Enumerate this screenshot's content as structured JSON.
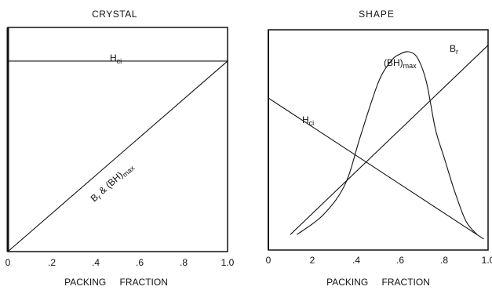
{
  "chart_data": [
    {
      "type": "line",
      "title": "CRYSTAL",
      "xlabel": "PACKING FRACTION",
      "ylabel": "",
      "xlim": [
        0,
        1.0
      ],
      "ylim": [
        0,
        1.0
      ],
      "x_ticks": [
        "0",
        ".2",
        ".4",
        ".6",
        ".8",
        "1.0"
      ],
      "grid": false,
      "series": [
        {
          "name": "Hci",
          "x": [
            0,
            1.0
          ],
          "y": [
            0.85,
            0.85
          ]
        },
        {
          "name": "Br & (BH)max",
          "x": [
            0,
            1.0
          ],
          "y": [
            0,
            0.85
          ]
        }
      ],
      "annotations": [
        {
          "text": "H",
          "sub": "ci"
        },
        {
          "text": "B",
          "sub": "r",
          "tail": " & (BH)",
          "sub2": "max"
        }
      ]
    },
    {
      "type": "line",
      "title": "SHAPE",
      "xlabel": "PACKING FRACTION",
      "ylabel": "",
      "xlim": [
        0,
        1.0
      ],
      "ylim": [
        0,
        1.0
      ],
      "x_ticks": [
        "0",
        "2",
        ".4",
        ".6",
        ".8",
        "1.0"
      ],
      "grid": false,
      "series": [
        {
          "name": "Br",
          "x": [
            0.1,
            1.0
          ],
          "y": [
            0.07,
            0.93
          ]
        },
        {
          "name": "Hci",
          "x": [
            0,
            0.98
          ],
          "y": [
            0.69,
            0.05
          ]
        },
        {
          "name": "(BH)max",
          "x": [
            0.13,
            0.25,
            0.35,
            0.42,
            0.5,
            0.56,
            0.6,
            0.64,
            0.68,
            0.72,
            0.76,
            0.8,
            0.85,
            0.9,
            0.95
          ],
          "y": [
            0.07,
            0.16,
            0.3,
            0.52,
            0.76,
            0.86,
            0.89,
            0.9,
            0.87,
            0.76,
            0.55,
            0.42,
            0.26,
            0.13,
            0.07
          ]
        }
      ],
      "annotations": [
        {
          "text": "B",
          "sub": "r"
        },
        {
          "text": "H",
          "sub": "ci"
        },
        {
          "text": "(BH)",
          "sub": "max"
        }
      ]
    }
  ]
}
